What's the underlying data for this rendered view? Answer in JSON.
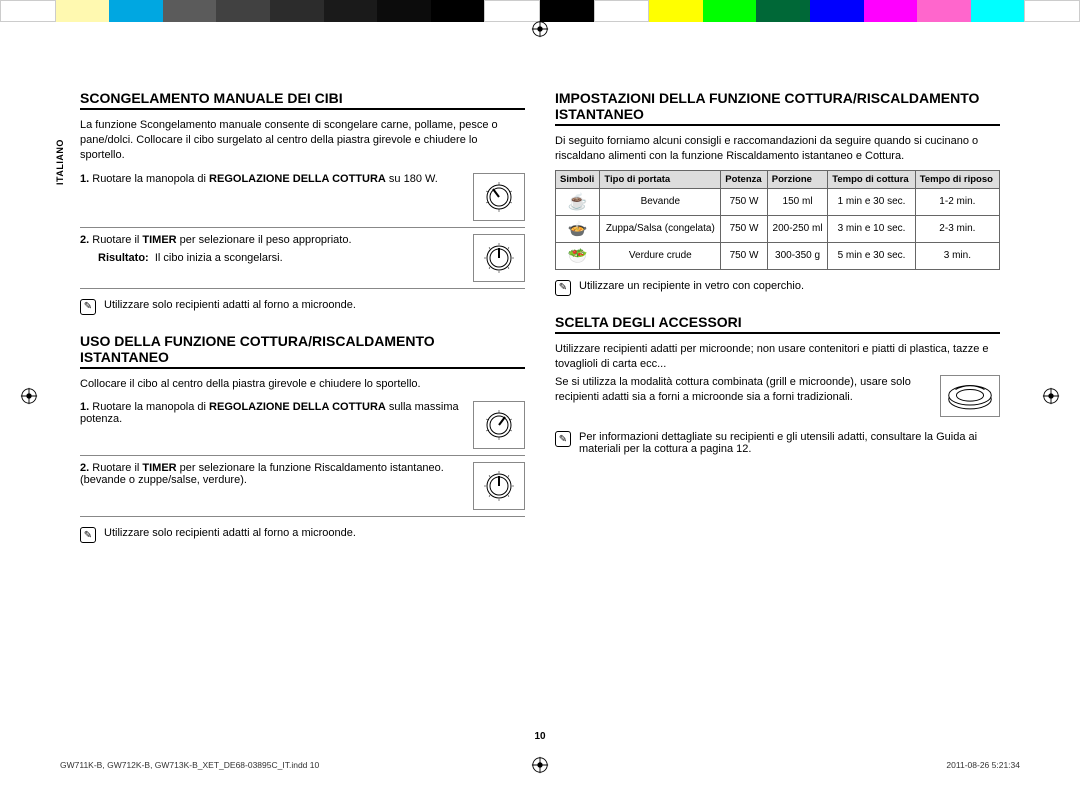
{
  "colorBar": [
    "#ffffff",
    "#fff9b0",
    "#00a7e1",
    "#5b5b5b",
    "#414141",
    "#2c2c2c",
    "#1a1a1a",
    "#0c0c0c",
    "#000000",
    "#ffffff",
    "#000000",
    "#ffffff",
    "#ffff00",
    "#00ff00",
    "#006837",
    "#0000ff",
    "#ff00ff",
    "#ff66cc",
    "#00ffff",
    "#ffffff"
  ],
  "sideTab": "ITALIANO",
  "left": {
    "sec1": {
      "title": "SCONGELAMENTO MANUALE DEI CIBI",
      "intro": "La funzione Scongelamento manuale consente di scongelare carne, pollame, pesce o pane/dolci. Collocare il cibo surgelato al centro della piastra girevole e chiudere lo sportello.",
      "step1_pre": "Ruotare la manopola di ",
      "step1_bold": "REGOLAZIONE DELLA COTTURA",
      "step1_post": " su 180 W.",
      "step2_pre": "Ruotare il ",
      "step2_bold": "TIMER",
      "step2_post": " per selezionare il peso appropriato.",
      "result_label": "Risultato:",
      "result_text": "Il cibo inizia a scongelarsi.",
      "note": "Utilizzare solo recipienti adatti al forno a microonde."
    },
    "sec2": {
      "title": "USO DELLA FUNZIONE COTTURA/RISCALDAMENTO ISTANTANEO",
      "intro": "Collocare il cibo al centro della piastra girevole e chiudere lo sportello.",
      "step1_pre": "Ruotare la manopola di ",
      "step1_bold": "REGOLAZIONE DELLA COTTURA",
      "step1_post": " sulla massima potenza.",
      "step2_pre": "Ruotare il ",
      "step2_bold": "TIMER",
      "step2_post": " per selezionare la funzione Riscaldamento istantaneo. (bevande o zuppe/salse, verdure).",
      "note": "Utilizzare solo recipienti adatti al forno a microonde."
    }
  },
  "right": {
    "sec1": {
      "title": "IMPOSTAZIONI DELLA FUNZIONE COTTURA/RISCALDAMENTO ISTANTANEO",
      "intro": "Di seguito forniamo alcuni consigli e raccomandazioni da seguire quando si cucinano o riscaldano alimenti con la funzione Riscaldamento istantaneo e Cottura.",
      "headers": [
        "Simboli",
        "Tipo di portata",
        "Potenza",
        "Porzione",
        "Tempo di cottura",
        "Tempo di riposo"
      ],
      "rows": [
        {
          "sym": "☕",
          "type": "Bevande",
          "power": "750 W",
          "portion": "150 ml",
          "cook": "1 min e 30 sec.",
          "rest": "1-2 min."
        },
        {
          "sym": "🍲",
          "type": "Zuppa/Salsa (congelata)",
          "power": "750 W",
          "portion": "200-250 ml",
          "cook": "3 min e 10 sec.",
          "rest": "2-3 min."
        },
        {
          "sym": "🥗",
          "type": "Verdure crude",
          "power": "750 W",
          "portion": "300-350 g",
          "cook": "5 min e 30 sec.",
          "rest": "3 min."
        }
      ],
      "note": "Utilizzare un recipiente in vetro con coperchio."
    },
    "sec2": {
      "title": "SCELTA DEGLI ACCESSORI",
      "p1": "Utilizzare recipienti adatti per microonde; non usare contenitori e piatti di plastica, tazze e tovaglioli di carta ecc...",
      "p2": "Se si utilizza la modalità cottura combinata (grill e microonde), usare solo recipienti adatti sia a forni a microonde sia a forni tradizionali.",
      "note": "Per informazioni dettagliate su recipienti e gli utensili adatti, consultare la Guida ai materiali per la cottura a pagina 12."
    }
  },
  "pageNum": "10",
  "footer": {
    "left": "GW711K-B, GW712K-B, GW713K-B_XET_DE68-03895C_IT.indd   10",
    "right": "2011-08-26   5:21:34"
  }
}
